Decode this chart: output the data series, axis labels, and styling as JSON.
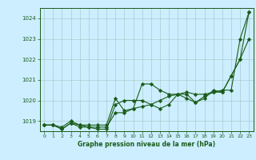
{
  "x": [
    0,
    1,
    2,
    3,
    4,
    5,
    6,
    7,
    8,
    9,
    10,
    11,
    12,
    13,
    14,
    15,
    16,
    17,
    18,
    19,
    20,
    21,
    22,
    23
  ],
  "line1": [
    1018.8,
    1018.8,
    1018.7,
    1019.0,
    1018.8,
    1018.8,
    1018.8,
    1018.8,
    1020.1,
    1019.5,
    1019.6,
    1020.8,
    1020.8,
    1020.5,
    1020.3,
    1020.3,
    1020.1,
    1019.9,
    1020.1,
    1020.5,
    1020.4,
    1021.2,
    1022.0,
    1023.0
  ],
  "line2": [
    1018.8,
    1018.8,
    1018.6,
    1018.9,
    1018.8,
    1018.7,
    1018.7,
    1018.7,
    1019.4,
    1019.4,
    1019.6,
    1019.7,
    1019.8,
    1020.0,
    1020.2,
    1020.3,
    1020.4,
    1020.3,
    1020.3,
    1020.4,
    1020.4,
    1021.2,
    1022.0,
    1024.3
  ],
  "line3": [
    1018.8,
    1018.8,
    1018.6,
    1018.9,
    1018.7,
    1018.7,
    1018.6,
    1018.6,
    1019.8,
    1020.0,
    1020.0,
    1020.0,
    1019.8,
    1019.6,
    1019.8,
    1020.3,
    1020.3,
    1019.9,
    1020.2,
    1020.4,
    1020.5,
    1020.5,
    1023.0,
    1024.3
  ],
  "bg_color": "#cceeff",
  "line_color": "#1a5c1a",
  "grid_color": "#aacccc",
  "xlabel": "Graphe pression niveau de la mer (hPa)",
  "ylim": [
    1018.5,
    1024.5
  ],
  "xlim": [
    -0.5,
    23.5
  ],
  "yticks": [
    1019,
    1020,
    1021,
    1022,
    1023,
    1024
  ],
  "xticks": [
    0,
    1,
    2,
    3,
    4,
    5,
    6,
    7,
    8,
    9,
    10,
    11,
    12,
    13,
    14,
    15,
    16,
    17,
    18,
    19,
    20,
    21,
    22,
    23
  ]
}
